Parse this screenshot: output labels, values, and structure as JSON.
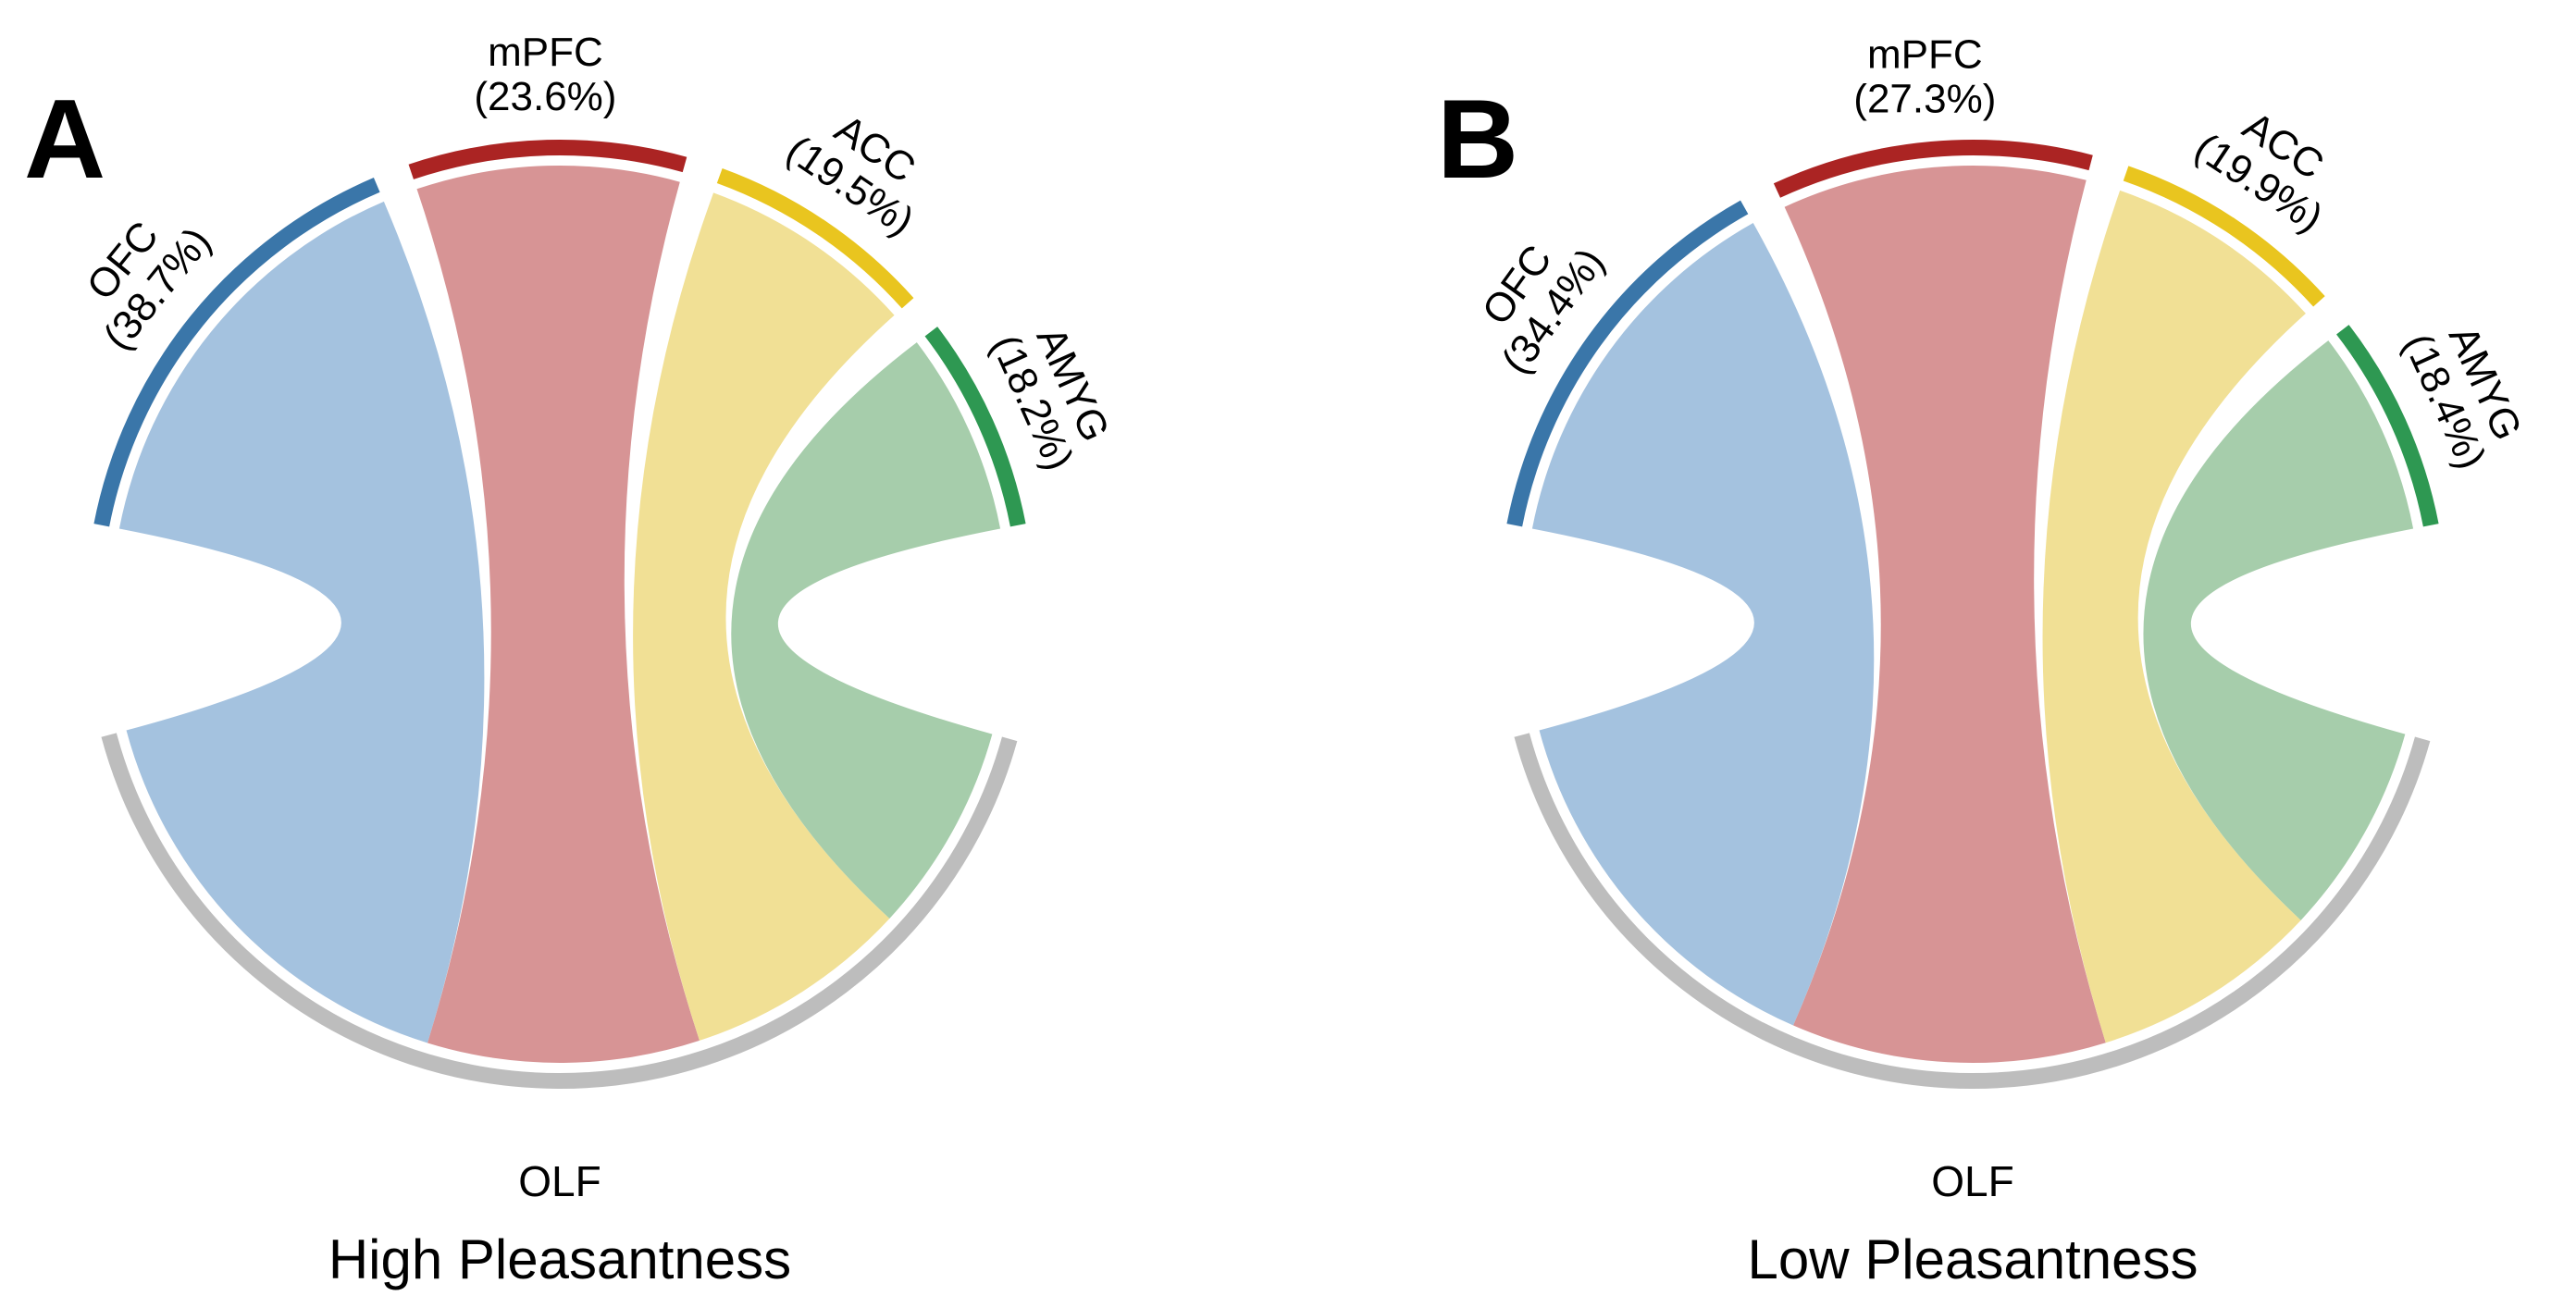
{
  "figure": {
    "description": "Two chord diagrams of brain-region connectivity shares with the olfactory cortex (OLF)",
    "panels": [
      {
        "label": "A",
        "title": "High Pleasantness",
        "hub": {
          "name": "OLF",
          "color": "#bdbdbd"
        },
        "regions": [
          {
            "name": "OFC",
            "pct": 38.7,
            "arc_color": "#3a76a9",
            "ribbon_color": "#a4c2df"
          },
          {
            "name": "mPFC",
            "pct": 23.6,
            "arc_color": "#ab2423",
            "ribbon_color": "#d79495"
          },
          {
            "name": "ACC",
            "pct": 19.5,
            "arc_color": "#e9c51f",
            "ribbon_color": "#f1e095"
          },
          {
            "name": "AMYG",
            "pct": 18.2,
            "arc_color": "#2e9852",
            "ribbon_color": "#a6cdab"
          }
        ]
      },
      {
        "label": "B",
        "title": "Low Pleasantness",
        "hub": {
          "name": "OLF",
          "color": "#bdbdbd"
        },
        "regions": [
          {
            "name": "OFC",
            "pct": 34.4,
            "arc_color": "#3a76a9",
            "ribbon_color": "#a4c2df"
          },
          {
            "name": "mPFC",
            "pct": 27.3,
            "arc_color": "#ab2423",
            "ribbon_color": "#d79495"
          },
          {
            "name": "ACC",
            "pct": 19.9,
            "arc_color": "#e9c51f",
            "ribbon_color": "#f1e095"
          },
          {
            "name": "AMYG",
            "pct": 18.4,
            "arc_color": "#2e9852",
            "ribbon_color": "#a6cdab"
          }
        ]
      }
    ]
  },
  "chart_data": [
    {
      "type": "chord",
      "panel": "A",
      "title": "High Pleasantness",
      "hub": "OLF",
      "nodes": [
        "OFC",
        "mPFC",
        "ACC",
        "AMYG",
        "OLF"
      ],
      "links": [
        {
          "source": "OFC",
          "target": "OLF",
          "share_pct": 38.7
        },
        {
          "source": "mPFC",
          "target": "OLF",
          "share_pct": 23.6
        },
        {
          "source": "ACC",
          "target": "OLF",
          "share_pct": 19.5
        },
        {
          "source": "AMYG",
          "target": "OLF",
          "share_pct": 18.2
        }
      ],
      "node_colors": {
        "OFC": "#3a76a9",
        "mPFC": "#ab2423",
        "ACC": "#e9c51f",
        "AMYG": "#2e9852",
        "OLF": "#bdbdbd"
      },
      "layout_hints": {
        "hub_position": "bottom",
        "source_arc_order_left_to_right": [
          "OFC",
          "mPFC",
          "ACC",
          "AMYG"
        ],
        "legend": "none",
        "labels": "arc names with percent share in parentheses"
      }
    },
    {
      "type": "chord",
      "panel": "B",
      "title": "Low Pleasantness",
      "hub": "OLF",
      "nodes": [
        "OFC",
        "mPFC",
        "ACC",
        "AMYG",
        "OLF"
      ],
      "links": [
        {
          "source": "OFC",
          "target": "OLF",
          "share_pct": 34.4
        },
        {
          "source": "mPFC",
          "target": "OLF",
          "share_pct": 27.3
        },
        {
          "source": "ACC",
          "target": "OLF",
          "share_pct": 19.9
        },
        {
          "source": "AMYG",
          "target": "OLF",
          "share_pct": 18.4
        }
      ],
      "node_colors": {
        "OFC": "#3a76a9",
        "mPFC": "#ab2423",
        "ACC": "#e9c51f",
        "AMYG": "#2e9852",
        "OLF": "#bdbdbd"
      },
      "layout_hints": {
        "hub_position": "bottom",
        "source_arc_order_left_to_right": [
          "OFC",
          "mPFC",
          "ACC",
          "AMYG"
        ],
        "legend": "none",
        "labels": "arc names with percent share in parentheses"
      }
    }
  ]
}
